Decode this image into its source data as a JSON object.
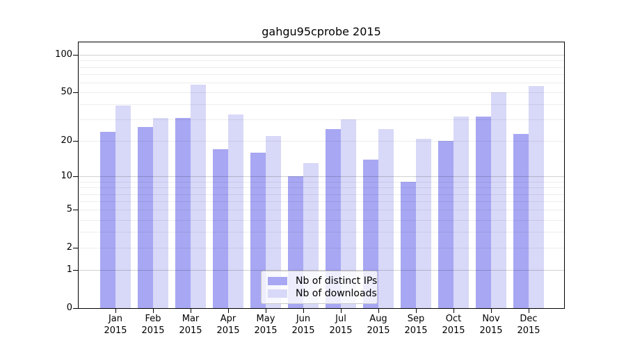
{
  "title": "gahgu95cprobe 2015",
  "chart_data": {
    "type": "bar",
    "title": "gahgu95cprobe 2015",
    "categories": [
      "Jan",
      "Feb",
      "Mar",
      "Apr",
      "May",
      "Jun",
      "Jul",
      "Aug",
      "Sep",
      "Oct",
      "Nov",
      "Dec"
    ],
    "category_year_label": "2015",
    "series": [
      {
        "name": "Nb of distinct IPs",
        "color": "#a7a7f3",
        "values": [
          24,
          26,
          31,
          17,
          16,
          10,
          25,
          14,
          9,
          20,
          32,
          23
        ]
      },
      {
        "name": "Nb of downloads",
        "color": "#d8d8f8",
        "values": [
          39,
          31,
          58,
          33,
          22,
          13,
          30,
          25,
          21,
          32,
          50,
          56
        ]
      }
    ],
    "xlabel": "",
    "ylabel": "",
    "y_axis": {
      "scale": "log1p",
      "ylim": [
        0,
        126
      ],
      "ticks": [
        0,
        1,
        2,
        5,
        10,
        20,
        50,
        100
      ],
      "minor_gridlines": [
        2,
        3,
        4,
        5,
        6,
        7,
        8,
        9,
        20,
        30,
        40,
        50,
        60,
        70,
        80,
        90
      ],
      "major_gridlines": [
        1,
        10,
        100
      ]
    },
    "legend": {
      "position": "lower-center"
    }
  }
}
